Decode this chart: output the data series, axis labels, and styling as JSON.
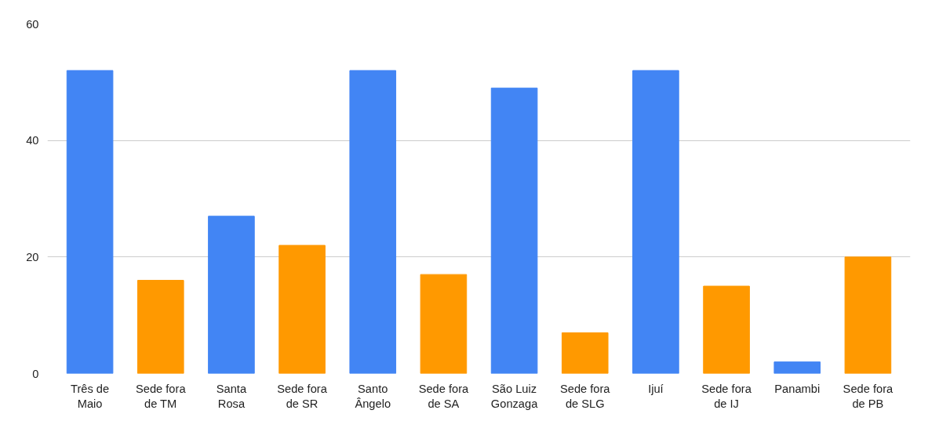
{
  "chart_data": {
    "type": "bar",
    "categories": [
      "Três de Maio",
      "Sede fora de TM",
      "Santa Rosa",
      "Sede fora de SR",
      "Santo Ângelo",
      "Sede fora de SA",
      "São Luiz Gonzaga",
      "Sede fora de SLG",
      "Ijuí",
      "Sede fora de IJ",
      "Panambi",
      "Sede fora de PB"
    ],
    "values": [
      52,
      16,
      27,
      22,
      52,
      17,
      49,
      7,
      52,
      15,
      2,
      20
    ],
    "colors": [
      "#4285f4",
      "#ff9900",
      "#4285f4",
      "#ff9900",
      "#4285f4",
      "#ff9900",
      "#4285f4",
      "#ff9900",
      "#4285f4",
      "#ff9900",
      "#4285f4",
      "#ff9900"
    ],
    "ylim": [
      0,
      60
    ],
    "yticks": [
      0,
      20,
      40,
      60
    ],
    "grid": "y"
  }
}
